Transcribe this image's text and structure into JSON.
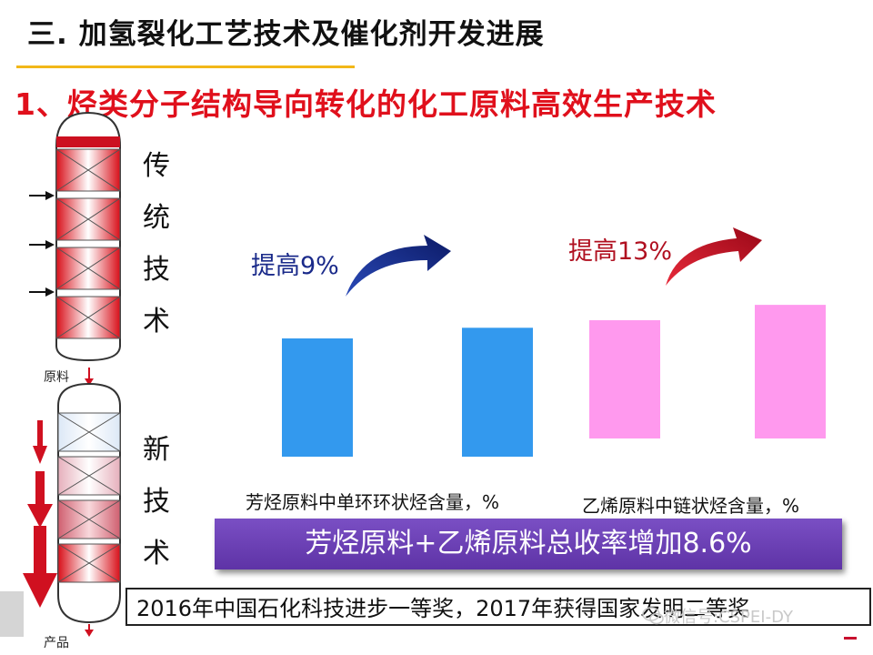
{
  "header": {
    "title": "三. 加氢裂化工艺技术及催化剂开发进展",
    "subtitle": "1、烃类分子结构导向转化的化工原料高效生产技术"
  },
  "traditional": {
    "chars": [
      "传",
      "统",
      "技",
      "术"
    ]
  },
  "new_tech": {
    "chars": [
      "新",
      "技",
      "术"
    ]
  },
  "labels": {
    "feed": "原料",
    "product": "产品"
  },
  "chart_data": {
    "type": "bar",
    "groups": [
      {
        "caption": "芳烃原料中单环环状烃含量，%",
        "increase_label": "提高9%",
        "values": [
          100,
          109
        ],
        "color": "#3399ee",
        "arrow_color": "#10217a"
      },
      {
        "caption": "乙烯原料中链状烃含量，%",
        "increase_label": "提高13%",
        "values": [
          100,
          113
        ],
        "color": "#ff99ee",
        "arrow_color": "#c0102a"
      }
    ]
  },
  "banner": {
    "text": "芳烃原料+乙烯原料总收率增加8.6%"
  },
  "award": {
    "text": "2016年中国石化科技进步一等奖，2017年获得国家发明二等奖"
  },
  "watermark": {
    "text": "微信号:CSPEI-DY"
  },
  "colors": {
    "title_rule": "#f2b718",
    "subtitle": "#e0101c",
    "banner": "#6a3db5"
  }
}
